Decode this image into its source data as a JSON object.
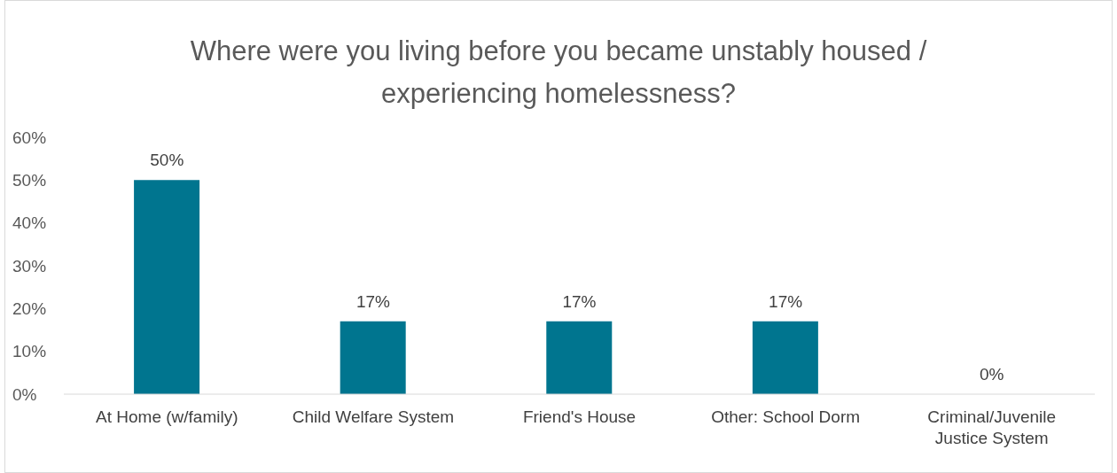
{
  "chart_data": {
    "type": "bar",
    "title": "Where were you living before you became unstably housed / experiencing homelessness?",
    "categories": [
      "At Home (w/family)",
      "Child Welfare System",
      "Friend's House",
      "Other: School Dorm",
      "Criminal/Juvenile Justice System"
    ],
    "values": [
      50,
      17,
      17,
      17,
      0
    ],
    "value_labels": [
      "50%",
      "17%",
      "17%",
      "17%",
      "0%"
    ],
    "color": "#00758f",
    "ylim": [
      0,
      60
    ],
    "yticks": [
      {
        "value": 0,
        "label": "0%"
      },
      {
        "value": 10,
        "label": "10%"
      },
      {
        "value": 20,
        "label": "20%"
      },
      {
        "value": 30,
        "label": "30%"
      },
      {
        "value": 40,
        "label": "40%"
      },
      {
        "value": 50,
        "label": "50%"
      },
      {
        "value": 60,
        "label": "60%"
      }
    ],
    "grid": false,
    "legend": false
  }
}
